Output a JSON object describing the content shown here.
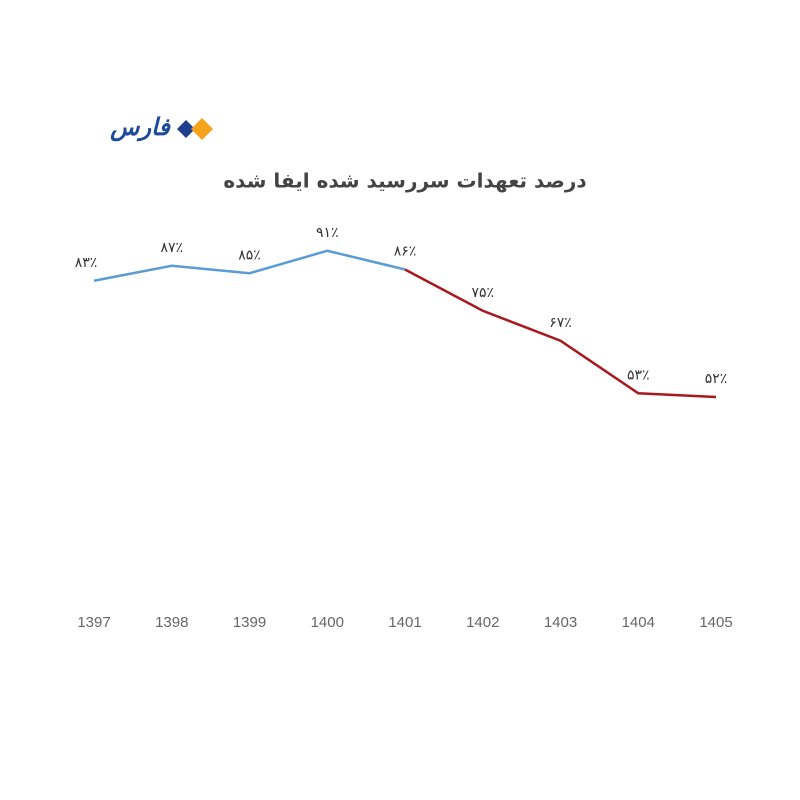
{
  "logo": "فارس",
  "chart_data": {
    "type": "line",
    "title": "درصد تعهدات سررسید شده ایفا شده",
    "categories": [
      "1397",
      "1398",
      "1399",
      "1400",
      "1401",
      "1402",
      "1403",
      "1404",
      "1405"
    ],
    "ylim": [
      0,
      100
    ],
    "series": [
      {
        "name": null,
        "color": "#5b9bd5",
        "values": [
          83,
          87,
          85,
          91,
          86,
          null,
          null,
          null,
          null
        ],
        "value_labels": [
          "۸۳٪",
          "۸۷٪",
          "۸۵٪",
          "۹۱٪",
          "۸۶٪",
          null,
          null,
          null,
          null
        ]
      },
      {
        "name": null,
        "color": "#a8191e",
        "values": [
          null,
          null,
          null,
          null,
          86,
          75,
          67,
          53,
          52
        ],
        "value_labels": [
          null,
          null,
          null,
          null,
          null,
          "۷۵٪",
          "۶۷٪",
          "۵۳٪",
          "۵۲٪"
        ]
      }
    ]
  }
}
